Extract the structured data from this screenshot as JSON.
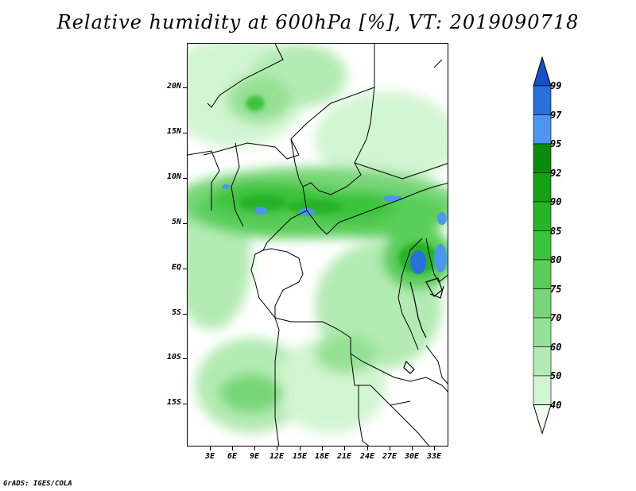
{
  "title": "Relative humidity at 600hPa [%], VT: 2019090718",
  "credit": "GrADS: IGES/COLA",
  "lat_ticks": [
    "20N",
    "15N",
    "10N",
    "5N",
    "EQ",
    "5S",
    "10S",
    "15S"
  ],
  "lon_ticks": [
    "3E",
    "6E",
    "9E",
    "12E",
    "15E",
    "18E",
    "21E",
    "24E",
    "27E",
    "30E",
    "33E"
  ],
  "colorbar": {
    "levels": [
      "40",
      "50",
      "60",
      "70",
      "75",
      "80",
      "85",
      "90",
      "92",
      "95",
      "97",
      "99"
    ],
    "colors": [
      "#f0fcf0",
      "#d2f5d2",
      "#b4ebb4",
      "#96e196",
      "#78d778",
      "#5acd5a",
      "#3cc33c",
      "#28b428",
      "#14a014",
      "#0a8c0a",
      "#4c96f0",
      "#2870dc",
      "#1450c8"
    ]
  }
}
